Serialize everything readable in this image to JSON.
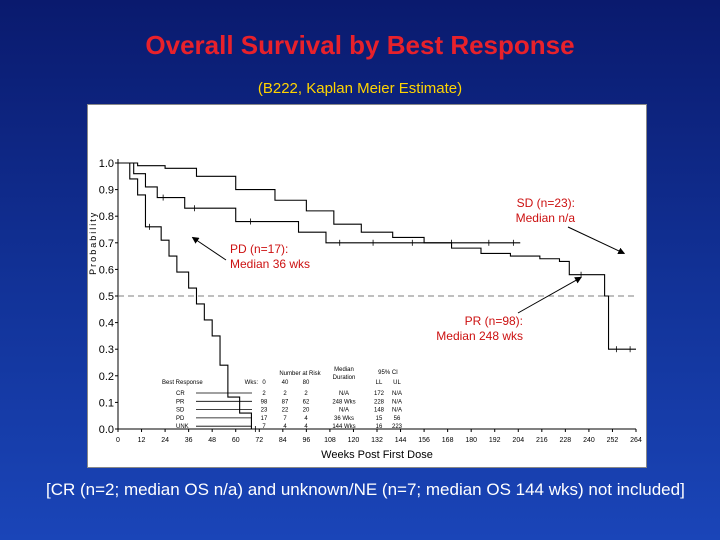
{
  "title": "Overall Survival by Best Response",
  "subtitle": "(B222, Kaplan Meier Estimate)",
  "footnote": "[CR (n=2; median OS n/a) and unknown/NE (n=7; median OS 144 wks) not included]",
  "colors": {
    "title": "#e8212b",
    "subtitle": "#ffd400",
    "annotation": "#cc1111",
    "background": "#123399"
  },
  "chart_data": {
    "type": "line",
    "xlabel": "Weeks Post First Dose",
    "ylabel": "Probability",
    "xlim": [
      0,
      264
    ],
    "ylim": [
      0,
      1.0
    ],
    "xticks": [
      0,
      12,
      24,
      36,
      48,
      60,
      72,
      84,
      96,
      108,
      120,
      132,
      144,
      156,
      168,
      180,
      192,
      204,
      216,
      228,
      240,
      252,
      264
    ],
    "yticks": [
      0.0,
      0.1,
      0.2,
      0.3,
      0.4,
      0.5,
      0.6,
      0.7,
      0.8,
      0.9,
      1.0
    ],
    "series": [
      {
        "name": "SD",
        "style": "solid",
        "x": [
          0,
          8,
          14,
          20,
          26,
          34,
          44,
          60,
          75,
          92,
          106,
          120,
          140,
          160,
          180,
          198,
          205
        ],
        "y": [
          1.0,
          0.96,
          0.91,
          0.87,
          0.87,
          0.83,
          0.83,
          0.78,
          0.78,
          0.74,
          0.7,
          0.7,
          0.7,
          0.7,
          0.7,
          0.7,
          0.7
        ]
      },
      {
        "name": "PR",
        "style": "solid",
        "x": [
          0,
          10,
          24,
          40,
          60,
          80,
          96,
          110,
          124,
          140,
          156,
          170,
          185,
          200,
          215,
          225,
          230,
          242,
          248,
          250,
          258,
          264
        ],
        "y": [
          1.0,
          0.99,
          0.98,
          0.95,
          0.9,
          0.86,
          0.82,
          0.77,
          0.74,
          0.72,
          0.7,
          0.68,
          0.66,
          0.65,
          0.64,
          0.63,
          0.58,
          0.58,
          0.5,
          0.3,
          0.3,
          0.3
        ]
      },
      {
        "name": "PD",
        "style": "solid",
        "x": [
          0,
          6,
          10,
          14,
          18,
          22,
          26,
          30,
          32,
          36,
          40,
          44,
          48,
          52,
          56,
          62,
          68,
          72
        ],
        "y": [
          1.0,
          0.94,
          0.88,
          0.76,
          0.76,
          0.71,
          0.65,
          0.59,
          0.59,
          0.53,
          0.47,
          0.41,
          0.35,
          0.24,
          0.12,
          0.06,
          0.0,
          0.0
        ]
      }
    ],
    "reference_line": {
      "y": 0.5,
      "style": "dashed"
    },
    "annotations": [
      {
        "id": "sd",
        "text": [
          "SD (n=23):",
          "Median n/a"
        ],
        "arrow_to_x": 258,
        "arrow_to_y": 0.66
      },
      {
        "id": "pd",
        "text": [
          "PD (n=17):",
          "Median 36 wks"
        ],
        "arrow_to_x": 38,
        "arrow_to_y": 0.72
      },
      {
        "id": "pr",
        "text": [
          "PR (n=98):",
          "Median 248 wks"
        ],
        "arrow_to_x": 236,
        "arrow_to_y": 0.57
      }
    ],
    "risk_table": {
      "number_at_risk_label": "Number at Risk",
      "median_label": [
        "Median",
        "Duration"
      ],
      "ci_label": "95% CI",
      "ci_cols": [
        "LL",
        "UL"
      ],
      "best_response_label": "Best Response",
      "wks_label": "Wks:",
      "timepoints": [
        "0",
        "40",
        "80"
      ],
      "rows": [
        {
          "label": "CR",
          "risk": [
            "2",
            "2",
            "2"
          ],
          "median": "N/A",
          "ll": "172",
          "ul": "N/A"
        },
        {
          "label": "PR",
          "risk": [
            "98",
            "87",
            "62"
          ],
          "median": "248 Wks",
          "ll": "228",
          "ul": "N/A"
        },
        {
          "label": "SD",
          "risk": [
            "23",
            "22",
            "20"
          ],
          "median": "N/A",
          "ll": "148",
          "ul": "N/A"
        },
        {
          "label": "PD",
          "risk": [
            "17",
            "7",
            "4"
          ],
          "median": "36 Wks",
          "ll": "15",
          "ul": "56"
        },
        {
          "label": "UNK",
          "risk": [
            "7",
            "4",
            "4"
          ],
          "median": "144 Wks",
          "ll": "16",
          "ul": "223"
        }
      ]
    }
  }
}
